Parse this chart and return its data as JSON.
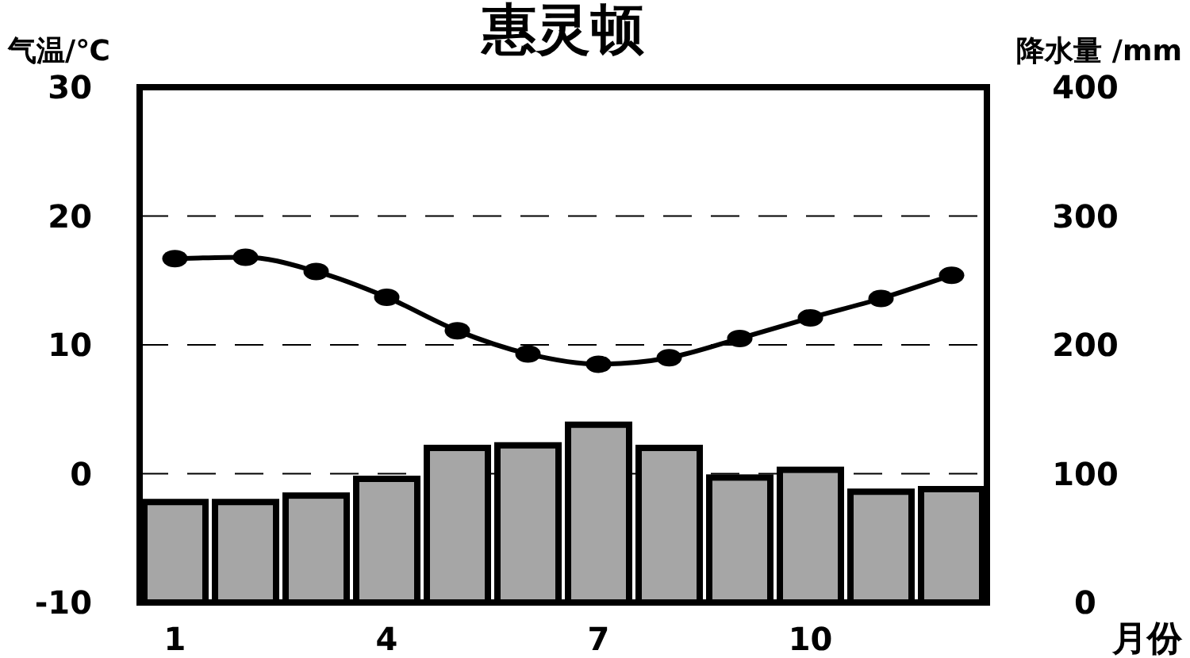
{
  "chart_data": {
    "type": "bar",
    "title": "惠灵顿",
    "xlabel": "月份",
    "ylabel": "气温/℃",
    "y2label": "降水量 /mm",
    "categories": [
      "1",
      null,
      null,
      "4",
      null,
      null,
      "7",
      null,
      null,
      "10",
      null,
      null
    ],
    "series": [
      {
        "axis": "y2",
        "color": "#a6a6a6",
        "values": [
          78,
          78,
          83,
          96,
          120,
          122,
          138,
          120,
          97,
          103,
          86,
          88
        ]
      },
      {
        "type": "line",
        "axis": "y",
        "color": "#000000",
        "marker": "circle",
        "line_style": "solid",
        "values": [
          16.7,
          16.8,
          15.7,
          13.7,
          11.1,
          9.3,
          8.5,
          9.0,
          10.5,
          12.1,
          13.6,
          15.4
        ]
      }
    ],
    "ylim": [
      -10,
      30
    ],
    "yticks": [
      -10,
      0,
      10,
      20,
      30
    ],
    "y2lim": [
      0,
      400
    ],
    "y2ticks": [
      0,
      100,
      200,
      300,
      400
    ],
    "grid": "y"
  }
}
